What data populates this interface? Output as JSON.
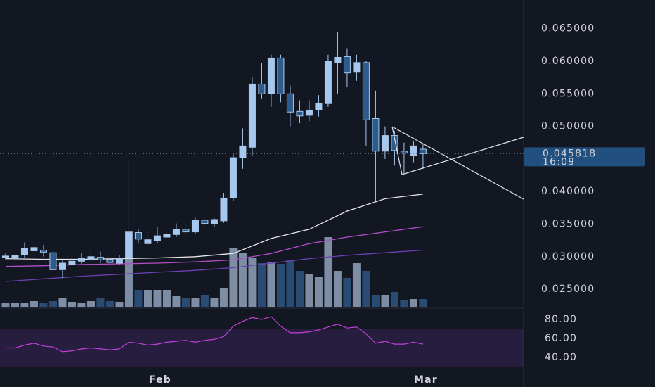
{
  "chart_data": [
    {
      "type": "candlestick",
      "open": [
        0.0299,
        0.0298,
        0.0303,
        0.0309,
        0.031,
        0.0306,
        0.028,
        0.0288,
        0.0293,
        0.0296,
        0.0299,
        0.0296,
        0.029,
        0.0298,
        0.0337,
        0.032,
        0.0325,
        0.033,
        0.0334,
        0.0342,
        0.0338,
        0.0356,
        0.035,
        0.0355,
        0.039,
        0.0452,
        0.0468,
        0.0565,
        0.055,
        0.0605,
        0.055,
        0.0523,
        0.0517,
        0.0525,
        0.0535,
        0.0598,
        0.0607,
        0.0583,
        0.0598,
        0.0512,
        0.0462,
        0.0486,
        0.0462,
        0.0455,
        0.0465
      ],
      "high": [
        0.0305,
        0.0306,
        0.0322,
        0.032,
        0.0318,
        0.031,
        0.0295,
        0.03,
        0.0306,
        0.0318,
        0.0308,
        0.03,
        0.0303,
        0.0447,
        0.0342,
        0.034,
        0.0345,
        0.0343,
        0.0351,
        0.035,
        0.036,
        0.036,
        0.0359,
        0.0398,
        0.0458,
        0.0497,
        0.0575,
        0.0597,
        0.061,
        0.061,
        0.0563,
        0.054,
        0.054,
        0.0548,
        0.061,
        0.0645,
        0.062,
        0.061,
        0.06,
        0.0555,
        0.05,
        0.0493,
        0.0475,
        0.0478,
        0.0474
      ],
      "low": [
        0.0295,
        0.0294,
        0.0298,
        0.0305,
        0.03,
        0.0276,
        0.0267,
        0.0285,
        0.0289,
        0.0292,
        0.029,
        0.0282,
        0.0287,
        0.0295,
        0.032,
        0.0316,
        0.032,
        0.0324,
        0.033,
        0.033,
        0.0335,
        0.0342,
        0.0346,
        0.0352,
        0.0385,
        0.0435,
        0.0455,
        0.0543,
        0.053,
        0.0537,
        0.05,
        0.0505,
        0.0508,
        0.0515,
        0.053,
        0.055,
        0.056,
        0.057,
        0.047,
        0.0385,
        0.045,
        0.044,
        0.0428,
        0.0445,
        0.0435
      ],
      "close": [
        0.0301,
        0.0302,
        0.0313,
        0.0314,
        0.0307,
        0.028,
        0.029,
        0.0293,
        0.0298,
        0.03,
        0.0295,
        0.0291,
        0.0298,
        0.0337,
        0.0327,
        0.0326,
        0.0332,
        0.0334,
        0.0342,
        0.0338,
        0.0356,
        0.0351,
        0.0357,
        0.039,
        0.0452,
        0.047,
        0.0565,
        0.055,
        0.0605,
        0.055,
        0.0522,
        0.0516,
        0.0525,
        0.0535,
        0.06,
        0.0606,
        0.0582,
        0.0598,
        0.051,
        0.0462,
        0.0486,
        0.0463,
        0.0459,
        0.047,
        0.045818
      ],
      "volume": [
        6,
        6,
        7,
        9,
        6,
        9,
        13,
        8,
        7,
        9,
        13,
        9,
        8,
        108,
        25,
        25,
        25,
        25,
        17,
        14,
        14,
        18,
        14,
        27,
        84,
        77,
        70,
        63,
        65,
        62,
        67,
        52,
        47,
        44,
        100,
        52,
        42,
        63,
        52,
        18,
        18,
        22,
        10,
        12,
        12
      ],
      "volume_lim": [
        0,
        437
      ],
      "up_color": "#a6c8ee",
      "down_color": "#2d5b8c",
      "volume_up_color": "#7d8da3",
      "volume_down_color": "#2a4c72",
      "lines": [
        {
          "color": "#e6e6ea",
          "x": [
            0,
            4,
            8,
            12,
            16,
            20,
            24,
            28,
            32,
            36,
            40,
            44
          ],
          "values": [
            0.0297,
            0.0296,
            0.0296,
            0.0297,
            0.0298,
            0.03,
            0.0305,
            0.0328,
            0.0342,
            0.037,
            0.0389,
            0.0396
          ]
        },
        {
          "color": "#b24fc8",
          "x": [
            0,
            4,
            8,
            12,
            16,
            20,
            24,
            28,
            32,
            36,
            40,
            44
          ],
          "values": [
            0.0285,
            0.0286,
            0.0288,
            0.0289,
            0.029,
            0.0292,
            0.0295,
            0.0305,
            0.032,
            0.033,
            0.0338,
            0.0346
          ]
        },
        {
          "color": "#6c3fb3",
          "x": [
            0,
            4,
            8,
            12,
            16,
            20,
            24,
            28,
            32,
            36,
            40,
            44
          ],
          "values": [
            0.0262,
            0.0266,
            0.027,
            0.0273,
            0.0276,
            0.0279,
            0.0283,
            0.029,
            0.0297,
            0.0302,
            0.0306,
            0.031
          ]
        }
      ],
      "xlim": [
        -0.59,
        54.6
      ],
      "xticks": [
        {
          "value": 16,
          "label": "Feb"
        },
        {
          "value": 44,
          "label": "Mar"
        }
      ],
      "ylim": [
        0.0222,
        0.0694
      ],
      "yticks": [
        {
          "value": 0.025,
          "label": "0.025000"
        },
        {
          "value": 0.03,
          "label": "0.030000"
        },
        {
          "value": 0.035,
          "label": "0.035000"
        },
        {
          "value": 0.04,
          "label": "0.040000"
        },
        {
          "value": 0.05,
          "label": "0.050000"
        },
        {
          "value": 0.055,
          "label": "0.055000"
        },
        {
          "value": 0.06,
          "label": "0.060000"
        },
        {
          "value": 0.065,
          "label": "0.065000"
        }
      ],
      "last_price": {
        "value": 0.045818,
        "label": "0.045818"
      },
      "countdown": "16:09"
    },
    {
      "type": "line",
      "values": [
        50,
        50,
        53,
        55,
        52,
        51,
        46,
        47,
        49,
        50,
        49,
        48,
        49,
        56,
        55,
        53,
        54,
        56,
        57,
        58,
        56,
        58,
        59,
        62,
        73,
        78,
        82,
        80,
        83,
        73,
        66,
        66,
        67,
        69,
        72,
        75,
        71,
        72,
        65,
        55,
        57,
        54,
        54,
        56,
        54
      ],
      "color": "#c33fd8",
      "levels": [
        70,
        30
      ],
      "xlim": [
        -0.59,
        54.6
      ],
      "ylim": [
        23.7,
        90.4
      ],
      "yticks": [
        {
          "value": 80,
          "label": "80.00"
        },
        {
          "value": 60,
          "label": "60.00"
        },
        {
          "value": 40,
          "label": "40.00"
        }
      ]
    }
  ]
}
